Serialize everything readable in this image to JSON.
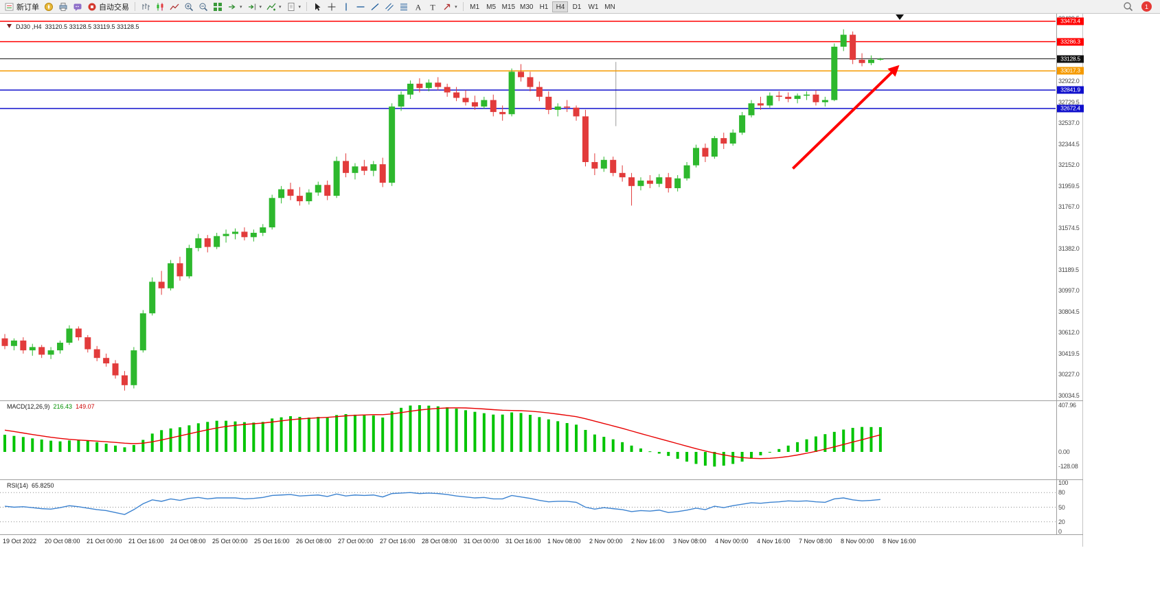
{
  "toolbar": {
    "new_order": "新订单",
    "auto_trading": "自动交易",
    "timeframes": [
      "M1",
      "M5",
      "M15",
      "M30",
      "H1",
      "H4",
      "D1",
      "W1",
      "MN"
    ],
    "active_timeframe": "H4",
    "notification_badge": "1"
  },
  "chart_header": {
    "symbol_period": "DJ30 ,H4",
    "ohlc": "33120.5 33128.5 33119.5 33128.5"
  },
  "colors": {
    "candle_up": "#2db82d",
    "candle_down": "#e23b3b",
    "macd_hist": "#00c400",
    "macd_signal": "#e80000",
    "rsi_line": "#3b82d0",
    "line_red": "#ff0000",
    "line_blue": "#1010cc",
    "line_orange": "#f59a00",
    "current_price": "#111111",
    "arrow": "#ff0000"
  },
  "chart_data": [
    {
      "type": "candlestick",
      "symbol": "DJ30",
      "period": "H4",
      "ohlc_header": "33120.5 33128.5 33119.5 33128.5",
      "ylim": [
        29990,
        33543
      ],
      "x_labels": [
        "19 Oct 2022",
        "20 Oct 08:00",
        "21 Oct 00:00",
        "21 Oct 16:00",
        "24 Oct 08:00",
        "25 Oct 00:00",
        "25 Oct 16:00",
        "26 Oct 08:00",
        "27 Oct 00:00",
        "27 Oct 16:00",
        "28 Oct 08:00",
        "31 Oct 00:00",
        "31 Oct 16:00",
        "1 Nov 08:00",
        "2 Nov 00:00",
        "2 Nov 16:00",
        "3 Nov 08:00",
        "4 Nov 00:00",
        "4 Nov 16:00",
        "7 Nov 08:00",
        "8 Nov 00:00",
        "8 Nov 16:00"
      ],
      "axis_gridline_values": [
        33499.5,
        32922.0,
        32729.5,
        32537.0,
        32344.5,
        32152.0,
        31959.5,
        31767.0,
        31574.5,
        31382.0,
        31189.5,
        30997.0,
        30804.5,
        30612.0,
        30419.5,
        30227.0,
        30034.5
      ],
      "hlines": [
        {
          "price": 33473.4,
          "color": "#ff0000"
        },
        {
          "price": 33286.3,
          "color": "#ff0000"
        },
        {
          "price": 33128.5,
          "color": "#111111",
          "current": true
        },
        {
          "price": 33017.3,
          "color": "#f59a00"
        },
        {
          "price": 32841.9,
          "color": "#1010cc"
        },
        {
          "price": 32672.4,
          "color": "#1010cc"
        }
      ],
      "trend_arrow": {
        "from_bar": 85.5,
        "from_price": 32120,
        "to_bar": 96.8,
        "to_price": 33050,
        "color": "#ff0000"
      },
      "time_marker_bar": 97.1,
      "vline_segment": {
        "bar": 66.3,
        "from_price": 33100,
        "to_price": 32510
      },
      "ohlc": [
        [
          30560,
          30600,
          30460,
          30490
        ],
        [
          30490,
          30560,
          30450,
          30540
        ],
        [
          30540,
          30570,
          30420,
          30450
        ],
        [
          30450,
          30510,
          30400,
          30480
        ],
        [
          30480,
          30500,
          30380,
          30410
        ],
        [
          30410,
          30480,
          30370,
          30450
        ],
        [
          30450,
          30540,
          30420,
          30520
        ],
        [
          30520,
          30680,
          30500,
          30650
        ],
        [
          30650,
          30670,
          30540,
          30570
        ],
        [
          30570,
          30590,
          30430,
          30460
        ],
        [
          30460,
          30490,
          30350,
          30380
        ],
        [
          30380,
          30420,
          30300,
          30330
        ],
        [
          30330,
          30360,
          30190,
          30220
        ],
        [
          30220,
          30260,
          30080,
          30130
        ],
        [
          30130,
          30480,
          30100,
          30450
        ],
        [
          30450,
          30820,
          30430,
          30790
        ],
        [
          30790,
          31120,
          30770,
          31080
        ],
        [
          31080,
          31180,
          30960,
          31020
        ],
        [
          31020,
          31280,
          31000,
          31250
        ],
        [
          31250,
          31310,
          31090,
          31130
        ],
        [
          31130,
          31420,
          31110,
          31390
        ],
        [
          31390,
          31520,
          31360,
          31480
        ],
        [
          31480,
          31510,
          31350,
          31400
        ],
        [
          31400,
          31530,
          31380,
          31500
        ],
        [
          31500,
          31560,
          31440,
          31520
        ],
        [
          31520,
          31570,
          31470,
          31540
        ],
        [
          31540,
          31580,
          31460,
          31490
        ],
        [
          31490,
          31560,
          31450,
          31530
        ],
        [
          31530,
          31610,
          31500,
          31580
        ],
        [
          31580,
          31880,
          31560,
          31850
        ],
        [
          31850,
          31960,
          31800,
          31930
        ],
        [
          31930,
          31990,
          31830,
          31870
        ],
        [
          31870,
          31950,
          31780,
          31820
        ],
        [
          31820,
          31930,
          31790,
          31900
        ],
        [
          31900,
          32000,
          31870,
          31970
        ],
        [
          31970,
          32010,
          31830,
          31870
        ],
        [
          31870,
          32230,
          31850,
          32190
        ],
        [
          32190,
          32260,
          32040,
          32080
        ],
        [
          32080,
          32170,
          32020,
          32140
        ],
        [
          32140,
          32200,
          32060,
          32100
        ],
        [
          32100,
          32190,
          32050,
          32160
        ],
        [
          32160,
          32220,
          31950,
          31990
        ],
        [
          31990,
          32720,
          31960,
          32690
        ],
        [
          32690,
          32830,
          32650,
          32800
        ],
        [
          32800,
          32930,
          32760,
          32900
        ],
        [
          32900,
          32950,
          32820,
          32860
        ],
        [
          32860,
          32940,
          32830,
          32910
        ],
        [
          32910,
          32960,
          32840,
          32870
        ],
        [
          32870,
          32900,
          32780,
          32820
        ],
        [
          32820,
          32870,
          32740,
          32770
        ],
        [
          32770,
          32840,
          32700,
          32730
        ],
        [
          32730,
          32790,
          32660,
          32690
        ],
        [
          32690,
          32780,
          32670,
          32750
        ],
        [
          32750,
          32800,
          32600,
          32640
        ],
        [
          32640,
          32700,
          32560,
          32620
        ],
        [
          32620,
          33040,
          32600,
          33010
        ],
        [
          33010,
          33080,
          32920,
          32960
        ],
        [
          32960,
          33010,
          32830,
          32870
        ],
        [
          32870,
          32920,
          32740,
          32780
        ],
        [
          32780,
          32830,
          32620,
          32660
        ],
        [
          32660,
          32720,
          32600,
          32690
        ],
        [
          32690,
          32750,
          32640,
          32680
        ],
        [
          32680,
          32700,
          32560,
          32600
        ],
        [
          32600,
          32660,
          32140,
          32180
        ],
        [
          32180,
          32260,
          32060,
          32120
        ],
        [
          32120,
          32230,
          32090,
          32200
        ],
        [
          32200,
          32230,
          32050,
          32080
        ],
        [
          32080,
          32150,
          32000,
          32040
        ],
        [
          32040,
          32080,
          31780,
          31960
        ],
        [
          31960,
          32040,
          31920,
          32010
        ],
        [
          32010,
          32060,
          31940,
          31980
        ],
        [
          31980,
          32070,
          31950,
          32040
        ],
        [
          32040,
          32080,
          31900,
          31940
        ],
        [
          31940,
          32060,
          31910,
          32030
        ],
        [
          32030,
          32180,
          32010,
          32150
        ],
        [
          32150,
          32340,
          32130,
          32310
        ],
        [
          32310,
          32350,
          32180,
          32230
        ],
        [
          32230,
          32420,
          32210,
          32400
        ],
        [
          32400,
          32450,
          32300,
          32350
        ],
        [
          32350,
          32480,
          32330,
          32450
        ],
        [
          32450,
          32640,
          32430,
          32610
        ],
        [
          32610,
          32750,
          32590,
          32720
        ],
        [
          32720,
          32780,
          32660,
          32700
        ],
        [
          32700,
          32820,
          32680,
          32790
        ],
        [
          32790,
          32830,
          32740,
          32780
        ],
        [
          32780,
          32820,
          32730,
          32760
        ],
        [
          32760,
          32810,
          32720,
          32790
        ],
        [
          32790,
          32830,
          32750,
          32800
        ],
        [
          32800,
          32840,
          32700,
          32730
        ],
        [
          32730,
          32780,
          32690,
          32750
        ],
        [
          32750,
          33270,
          32740,
          33240
        ],
        [
          33240,
          33400,
          33200,
          33350
        ],
        [
          33350,
          33380,
          33080,
          33120
        ],
        [
          33120,
          33180,
          33060,
          33090
        ],
        [
          33090,
          33160,
          33070,
          33120.5
        ],
        [
          33120.5,
          33138,
          33112,
          33128.5
        ]
      ]
    },
    {
      "type": "bar",
      "name": "MACD(12,26,9)",
      "value_main": "216.43",
      "value_signal": "149.07",
      "axis_values": [
        407.96,
        0,
        -128.08
      ],
      "histogram": [
        150,
        140,
        130,
        118,
        108,
        98,
        92,
        100,
        106,
        96,
        85,
        72,
        55,
        40,
        60,
        105,
        160,
        190,
        205,
        215,
        232,
        250,
        262,
        272,
        272,
        266,
        260,
        256,
        262,
        292,
        302,
        312,
        306,
        300,
        306,
        298,
        322,
        330,
        325,
        320,
        318,
        300,
        355,
        385,
        405,
        408,
        404,
        398,
        390,
        378,
        364,
        350,
        338,
        326,
        326,
        345,
        340,
        324,
        304,
        284,
        268,
        252,
        238,
        192,
        152,
        132,
        110,
        85,
        55,
        30,
        5,
        -15,
        -35,
        -60,
        -85,
        -105,
        -120,
        -128,
        -120,
        -105,
        -85,
        -60,
        -30,
        -5,
        25,
        55,
        85,
        110,
        135,
        155,
        175,
        195,
        210,
        218,
        217,
        216.43
      ],
      "signal": [
        190,
        178,
        165,
        152,
        140,
        128,
        118,
        110,
        104,
        99,
        94,
        89,
        83,
        76,
        72,
        76,
        88,
        104,
        122,
        140,
        158,
        176,
        193,
        209,
        222,
        232,
        240,
        246,
        252,
        261,
        271,
        281,
        288,
        293,
        298,
        302,
        308,
        315,
        320,
        323,
        326,
        325,
        332,
        343,
        355,
        366,
        374,
        380,
        384,
        385,
        384,
        380,
        375,
        369,
        364,
        362,
        360,
        356,
        349,
        340,
        330,
        319,
        308,
        290,
        269,
        248,
        227,
        206,
        183,
        160,
        138,
        116,
        94,
        72,
        50,
        28,
        8,
        -10,
        -26,
        -40,
        -50,
        -56,
        -58,
        -56,
        -50,
        -40,
        -27,
        -12,
        5,
        24,
        44,
        65,
        86,
        106,
        128,
        149.07
      ]
    },
    {
      "type": "line",
      "name": "RSI(14)",
      "value": "65.8250",
      "axis_values": [
        100,
        80,
        50,
        20,
        0
      ],
      "levels": [
        80,
        50,
        20
      ],
      "values": [
        52,
        50,
        51,
        49,
        47,
        46,
        49,
        53,
        51,
        48,
        45,
        43,
        39,
        35,
        45,
        57,
        65,
        62,
        67,
        64,
        68,
        70,
        67,
        69,
        69,
        69,
        67,
        68,
        70,
        74,
        75,
        76,
        73,
        74,
        75,
        72,
        77,
        73,
        75,
        74,
        75,
        71,
        78,
        79,
        80,
        78,
        79,
        78,
        76,
        73,
        71,
        69,
        70,
        67,
        67,
        74,
        71,
        68,
        64,
        61,
        62,
        62,
        60,
        50,
        46,
        49,
        47,
        45,
        41,
        43,
        42,
        44,
        39,
        41,
        44,
        48,
        45,
        52,
        49,
        53,
        56,
        59,
        58,
        60,
        61,
        63,
        62,
        63,
        61,
        60,
        67,
        69,
        65,
        63,
        64,
        65.83
      ]
    }
  ]
}
